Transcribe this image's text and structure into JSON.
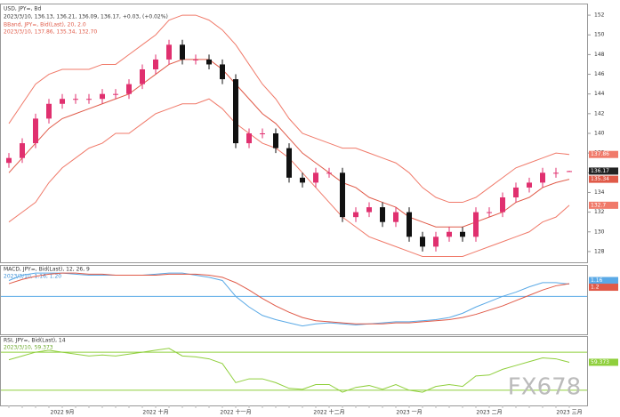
{
  "chart_data": [
    {
      "type": "candlestick",
      "title": "USD, JPY=, Bd",
      "subtitle": "2023/3/10, 136.13, 136.21, 136.09, 136.17, +0.03, (+0.02%)",
      "annotations": [
        "BBand, JPY=, Bid(Last), 20, 2.0",
        "2023/3/10, 137.86, 135.34, 132.70"
      ],
      "watermark": "FX678",
      "categories": [
        null,
        null,
        null,
        null,
        "2022 9月",
        null,
        null,
        null,
        null,
        null,
        null,
        "2022 十月",
        null,
        null,
        null,
        null,
        null,
        "2022 十一月",
        null,
        null,
        null,
        null,
        null,
        null,
        "2022 十二月",
        null,
        null,
        null,
        null,
        null,
        "2023 一月",
        null,
        null,
        null,
        null,
        null,
        "2023 二月",
        null,
        null,
        null,
        null,
        null,
        "2023 三月"
      ],
      "open": [
        137,
        137.5,
        139,
        141.5,
        143,
        143.5,
        143.5,
        143.5,
        144,
        144,
        145,
        146.5,
        147.5,
        149,
        147.5,
        147.5,
        147,
        145.5,
        139,
        140,
        140,
        138.5,
        135.5,
        135,
        136,
        136,
        131.5,
        132,
        132.5,
        131,
        132,
        129.5,
        128.5,
        129.5,
        130,
        129.5,
        132,
        132,
        133.5,
        134.5,
        135,
        136,
        136.13
      ],
      "high": [
        138,
        139.5,
        142,
        143.5,
        144,
        144,
        144,
        144.5,
        144.5,
        145.5,
        147,
        148,
        149.5,
        149.5,
        148,
        148,
        147.5,
        146,
        140.5,
        140.5,
        140.5,
        139,
        136,
        136.5,
        136.5,
        136.5,
        132.5,
        133,
        133,
        132.5,
        132.5,
        130,
        130,
        130.5,
        130.5,
        132.5,
        132.5,
        134,
        135,
        135.5,
        136.5,
        136.5,
        136.21
      ],
      "low": [
        136.5,
        137,
        138.5,
        141,
        142.5,
        143,
        143,
        143,
        143.5,
        143.5,
        144.5,
        146,
        147,
        147,
        147,
        146.5,
        145,
        138.5,
        138.5,
        139.5,
        138,
        135,
        134.5,
        134.5,
        135.5,
        131,
        131,
        131.5,
        130.5,
        130.5,
        129,
        128,
        128,
        129,
        129,
        129,
        131.5,
        131.5,
        133,
        134,
        134.5,
        135.5,
        136.09
      ],
      "close": [
        137.5,
        139,
        141.5,
        143,
        143.5,
        143.5,
        143.5,
        144,
        144,
        145,
        146.5,
        147.5,
        149,
        147.5,
        147.5,
        147,
        145.5,
        139,
        140,
        140,
        138.5,
        135.5,
        135,
        136,
        136,
        131.5,
        132,
        132.5,
        131,
        132,
        129.5,
        128.5,
        129.5,
        130,
        129.5,
        132,
        132,
        133.5,
        134.5,
        135,
        136,
        136,
        136.17
      ],
      "up_color": "#e0306f",
      "down_color": "#111111",
      "series": [
        {
          "color": "#f07a6a",
          "values": [
            141,
            143,
            145,
            146,
            146.5,
            146.5,
            146.5,
            147,
            147,
            148,
            149,
            150,
            151.5,
            152,
            152,
            151.5,
            150.5,
            149,
            147,
            145,
            143.5,
            141.5,
            140,
            139.5,
            139,
            138.5,
            138.5,
            138,
            137.5,
            137,
            136,
            134.5,
            133.5,
            133,
            133,
            133.5,
            134.5,
            135.5,
            136.5,
            137,
            137.5,
            138,
            137.86
          ]
        },
        {
          "color": "#e05a48",
          "values": [
            136,
            137.5,
            139,
            140.5,
            141.5,
            142,
            142.5,
            143,
            143.5,
            144,
            145,
            146,
            147,
            147.5,
            147.5,
            147.5,
            146.5,
            145,
            143.5,
            142,
            141,
            139.5,
            138,
            137,
            136,
            135,
            134.5,
            133.5,
            133,
            132.5,
            131.5,
            131,
            130.5,
            130.5,
            130.5,
            131,
            131.5,
            132,
            133,
            133.5,
            134.5,
            135,
            135.34
          ]
        },
        {
          "color": "#f07a6a",
          "values": [
            131,
            132,
            133,
            135,
            136.5,
            137.5,
            138.5,
            139,
            140,
            140,
            141,
            142,
            142.5,
            143,
            143,
            143.5,
            142.5,
            141,
            140,
            139,
            138.5,
            137.5,
            136,
            134.5,
            133,
            131.5,
            130.5,
            129.5,
            129,
            128.5,
            128,
            127.5,
            127.5,
            127.5,
            127.5,
            128,
            128.5,
            129,
            129.5,
            130,
            131,
            131.5,
            132.7
          ]
        }
      ],
      "ylim": [
        127,
        153
      ],
      "yticks": [
        128,
        130,
        132,
        134,
        136,
        138,
        140,
        142,
        144,
        146,
        148,
        150,
        152
      ]
    },
    {
      "type": "line",
      "title": "MACD, JPY=, Bid(Last), 12, 26, 9",
      "subtitle": "2023/3/10, 1.16, 1.20",
      "series": [
        {
          "color": "#5aa9e6",
          "values": [
            1.5,
            2,
            2.2,
            2.2,
            2.2,
            2.1,
            2,
            2,
            2,
            2,
            2,
            2.1,
            2.2,
            2.2,
            2,
            1.8,
            1.5,
            0,
            -1,
            -1.8,
            -2.2,
            -2.5,
            -2.8,
            -2.6,
            -2.5,
            -2.6,
            -2.7,
            -2.6,
            -2.5,
            -2.4,
            -2.4,
            -2.3,
            -2.2,
            -2,
            -1.6,
            -1,
            -0.5,
            0,
            0.4,
            0.9,
            1.3,
            1.3,
            1.16
          ]
        },
        {
          "color": "#e05a48",
          "values": [
            1.2,
            1.6,
            1.9,
            2.1,
            2.2,
            2.2,
            2.1,
            2.1,
            2,
            2,
            2,
            2,
            2.1,
            2.1,
            2.1,
            2,
            1.8,
            1.3,
            0.6,
            -0.2,
            -0.9,
            -1.5,
            -2,
            -2.3,
            -2.4,
            -2.5,
            -2.6,
            -2.6,
            -2.6,
            -2.5,
            -2.5,
            -2.4,
            -2.3,
            -2.2,
            -2,
            -1.7,
            -1.3,
            -0.9,
            -0.4,
            0.1,
            0.6,
            1,
            1.2
          ]
        }
      ],
      "reference_line": 0,
      "ylim": [
        -3.5,
        2.8
      ]
    },
    {
      "type": "line",
      "title": "RSI, JPY=, Bid(Last), 14",
      "subtitle": "2023/3/10, 59.373",
      "series": [
        {
          "color": "#8fcf3c",
          "values": [
            62,
            66,
            70,
            72,
            70,
            68,
            66,
            67,
            66,
            68,
            70,
            72,
            74,
            66,
            65,
            63,
            58,
            38,
            42,
            42,
            38,
            32,
            31,
            36,
            36,
            28,
            33,
            35,
            31,
            36,
            30,
            28,
            34,
            36,
            34,
            45,
            46,
            52,
            56,
            60,
            64,
            63,
            59.373
          ]
        }
      ],
      "levels": [
        70,
        30
      ],
      "ylim": [
        15,
        85
      ]
    }
  ]
}
